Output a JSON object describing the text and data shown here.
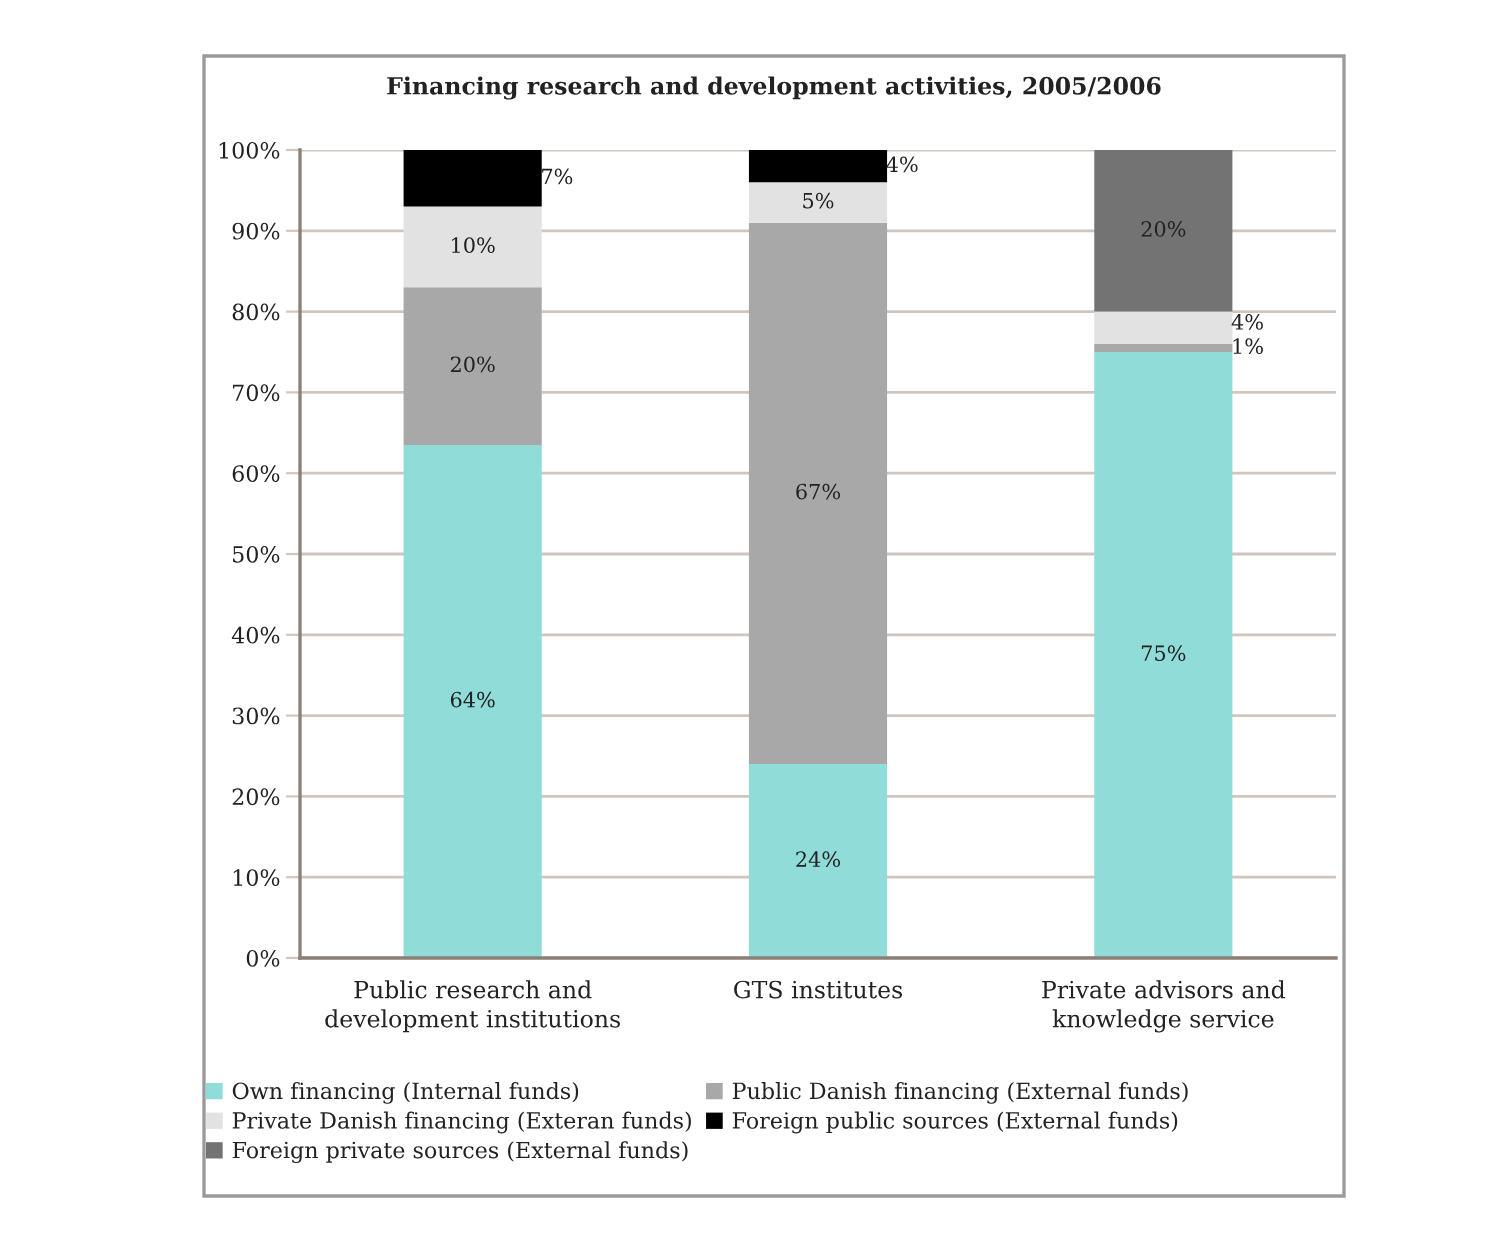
{
  "chart_data": {
    "type": "bar",
    "title": "Financing research and development activities, 2005/2006",
    "categories": [
      "Public research and\ndevelopment institutions",
      "GTS institutes",
      "Private advisors and\nknowledge service"
    ],
    "stacked": true,
    "series": [
      {
        "name": "Own financing (Internal funds)",
        "color": "#8fdcd8",
        "values": [
          63.5,
          24,
          75
        ],
        "value_labels": [
          "64%",
          "24%",
          "75%"
        ]
      },
      {
        "name": "Public Danish financing (External funds)",
        "color": "#a8a8a8",
        "values": [
          19.5,
          67,
          1
        ],
        "value_labels": [
          "20%",
          "67%",
          "1%"
        ]
      },
      {
        "name": "Private Danish financing (Exteran funds)",
        "color": "#e2e2e2",
        "values": [
          10,
          5,
          4
        ],
        "value_labels": [
          "10%",
          "5%",
          "4%"
        ]
      },
      {
        "name": "Foreign public sources (External funds)",
        "color": "#000000",
        "values": [
          7,
          4,
          null
        ],
        "value_labels": [
          "7%",
          "4%",
          null
        ]
      },
      {
        "name": "Foreign private sources (External funds)",
        "color": "#737373",
        "values": [
          null,
          null,
          20
        ],
        "value_labels": [
          null,
          null,
          "20%"
        ]
      }
    ],
    "ylim": [
      0,
      100
    ],
    "yticks": [
      {
        "value": 0,
        "label": "0%"
      },
      {
        "value": 10,
        "label": "10%"
      },
      {
        "value": 20,
        "label": "20%"
      },
      {
        "value": 30,
        "label": "30%"
      },
      {
        "value": 40,
        "label": "40%"
      },
      {
        "value": 50,
        "label": "50%"
      },
      {
        "value": 60,
        "label": "60%"
      },
      {
        "value": 70,
        "label": "70%"
      },
      {
        "value": 80,
        "label": "80%"
      },
      {
        "value": 90,
        "label": "90%"
      },
      {
        "value": 100,
        "label": "100%"
      }
    ],
    "grid": "y",
    "legend": "bottom"
  }
}
